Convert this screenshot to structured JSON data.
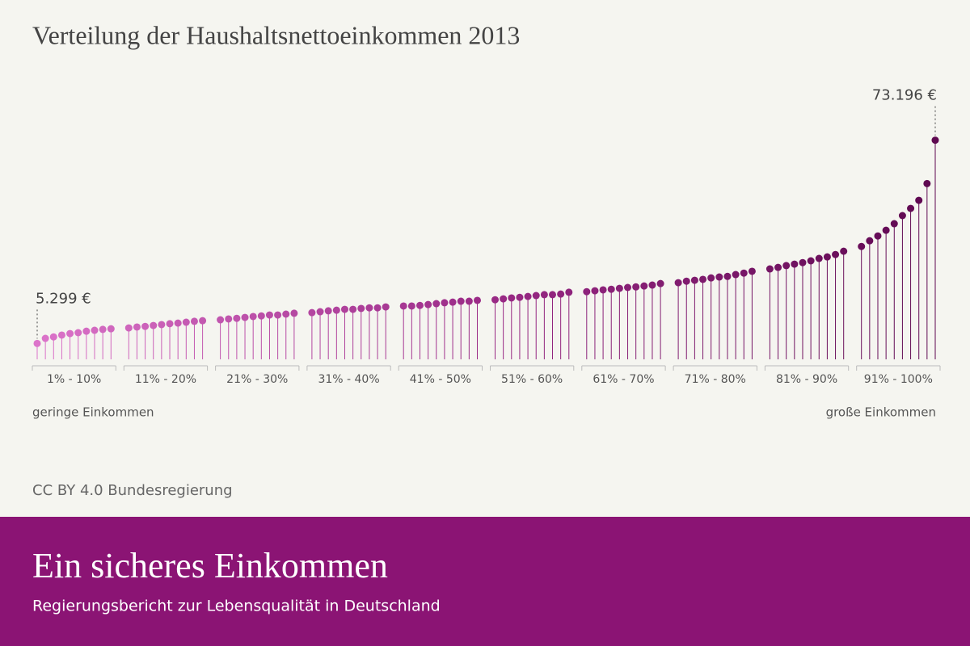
{
  "chart_data": {
    "type": "lollipop",
    "title": "Verteilung der Haushaltsnettoeinkommen 2013",
    "x_low_label": "geringe Einkommen",
    "x_high_label": "große Einkommen",
    "source": "CC BY 4.0 Bundesregierung",
    "ylim": [
      0,
      120000
    ],
    "color_scale": [
      "#dc74ca",
      "#9a2a86",
      "#5e0850"
    ],
    "groups": [
      {
        "label": "1% - 10%",
        "values": [
          5299,
          7000,
          7500,
          8100,
          8600,
          8900,
          9400,
          9700,
          10000,
          10200
        ],
        "value_labels": [
          "5.299 €",
          null,
          null,
          null,
          null,
          null,
          null,
          null,
          null,
          null
        ]
      },
      {
        "label": "11% - 20%",
        "values": [
          10500,
          10800,
          11000,
          11300,
          11600,
          11900,
          12100,
          12400,
          12700,
          12900
        ]
      },
      {
        "label": "21% - 30%",
        "values": [
          13200,
          13500,
          13700,
          14000,
          14300,
          14500,
          14800,
          14800,
          15100,
          15400
        ]
      },
      {
        "label": "31% - 40%",
        "values": [
          15600,
          15900,
          16200,
          16400,
          16700,
          16700,
          17000,
          17200,
          17200,
          17500
        ]
      },
      {
        "label": "41% - 50%",
        "values": [
          17800,
          17800,
          18000,
          18300,
          18600,
          18900,
          19100,
          19400,
          19400,
          19700
        ]
      },
      {
        "label": "51% - 60%",
        "values": [
          19900,
          20200,
          20500,
          20700,
          21000,
          21300,
          21600,
          21600,
          21800,
          22400
        ]
      },
      {
        "label": "61% - 70%",
        "values": [
          22600,
          22900,
          23200,
          23400,
          23700,
          24000,
          24200,
          24500,
          24800,
          25300
        ]
      },
      {
        "label": "71% - 80%",
        "values": [
          25600,
          26100,
          26400,
          26700,
          27200,
          27500,
          27700,
          28300,
          28800,
          29400
        ]
      },
      {
        "label": "81% - 90%",
        "values": [
          30200,
          30700,
          31300,
          31800,
          32300,
          32900,
          33700,
          34200,
          35000,
          36100
        ]
      },
      {
        "label": "91% - 100%",
        "values": [
          37700,
          39600,
          41200,
          43100,
          45300,
          48000,
          50400,
          53100,
          58700,
          73196
        ],
        "value_labels": [
          null,
          null,
          null,
          null,
          null,
          null,
          null,
          null,
          null,
          "73.196 €"
        ]
      }
    ]
  },
  "footer": {
    "title": "Ein sicheres Einkommen",
    "subtitle": "Regierungsbericht zur Lebensqualität in Deutschland"
  }
}
